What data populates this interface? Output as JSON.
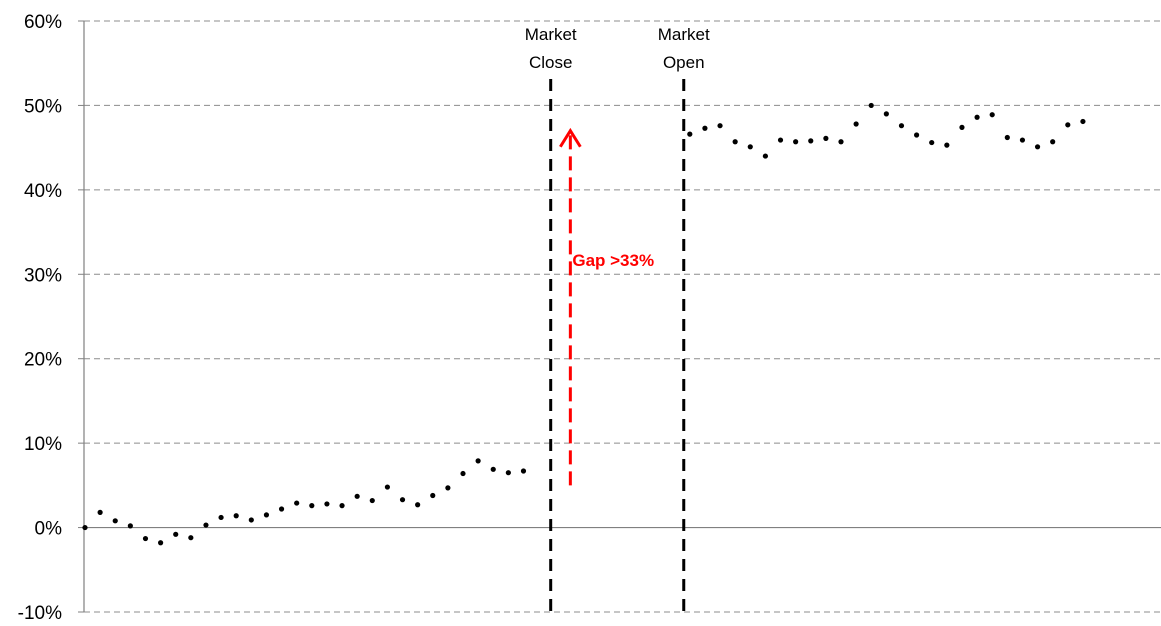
{
  "chart_data": {
    "type": "line",
    "ylim": [
      -10,
      60
    ],
    "y_ticks": [
      -10,
      0,
      10,
      20,
      30,
      40,
      50,
      60
    ],
    "y_tick_labels": [
      "-10%",
      "0%",
      "10%",
      "20%",
      "30%",
      "40%",
      "50%",
      "60%"
    ],
    "grid": "horizontal dashed",
    "series": [
      {
        "style": "dotted",
        "color": "#000000",
        "values": [
          0,
          1.8,
          0.8,
          0.2,
          -1.3,
          -1.8,
          -0.8,
          -1.2,
          0.3,
          1.2,
          1.4,
          0.9,
          1.5,
          2.2,
          2.9,
          2.6,
          2.8,
          2.6,
          3.7,
          3.2,
          4.8,
          3.3,
          2.7,
          3.8,
          4.7,
          6.4,
          7.9,
          6.9,
          6.5,
          6.7,
          null,
          null,
          null,
          null,
          null,
          null,
          null,
          null,
          null,
          null,
          46.6,
          47.3,
          47.6,
          45.7,
          45.1,
          44.0,
          45.9,
          45.7,
          45.8,
          46.1,
          45.7,
          47.8,
          50.0,
          49.0,
          47.6,
          46.5,
          45.6,
          45.3,
          47.4,
          48.6,
          48.9,
          46.2,
          45.9,
          45.1,
          45.7,
          47.7,
          48.1
        ]
      }
    ],
    "vertical_markers": [
      {
        "label": "Market Close",
        "line1": "Market",
        "line2": "Close",
        "index": 30.8
      },
      {
        "label": "Market Open",
        "line1": "Market",
        "line2": "Open",
        "index": 39.6
      }
    ],
    "gap_arrow": {
      "from": 5,
      "to": 47,
      "index": 32.1,
      "label": "Gap >33%",
      "color": "#ff0000"
    }
  }
}
